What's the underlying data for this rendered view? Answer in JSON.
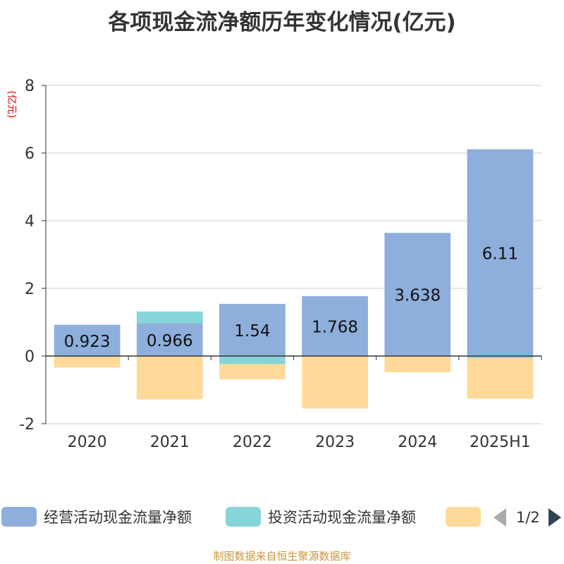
{
  "title": "各项现金流净额历年变化情况(亿元)",
  "source_note": "制图数据来自恒生聚源数据库",
  "legend": {
    "items": [
      {
        "label": "经营活动现金流量净额",
        "color": "#8eaedc"
      },
      {
        "label": "投资活动现金流量净额",
        "color": "#86d5d9"
      },
      {
        "label": "",
        "color": "#fed99a"
      }
    ],
    "page_text": "1/2"
  },
  "chart_data": {
    "type": "bar",
    "stacked": true,
    "ylabel": "(亿元)",
    "ylim": [
      -2,
      8
    ],
    "yticks": [
      -2,
      0,
      2,
      4,
      6,
      8
    ],
    "grid": true,
    "categories": [
      "2020",
      "2021",
      "2022",
      "2023",
      "2024",
      "2025H1"
    ],
    "series": [
      {
        "name": "经营活动现金流量净额",
        "color": "#8eaedc",
        "values": [
          0.923,
          0.966,
          1.54,
          1.768,
          3.638,
          6.11
        ],
        "labels": [
          "0.923",
          "0.966",
          "1.54",
          "1.768",
          "3.638",
          "6.11"
        ]
      },
      {
        "name": "投资活动现金流量净额",
        "color": "#86d5d9",
        "values": [
          -0.02,
          0.35,
          -0.24,
          0.0,
          0.0,
          -0.06
        ]
      },
      {
        "color": "#fed99a",
        "values": [
          -0.32,
          -1.28,
          -0.45,
          -1.55,
          -0.48,
          -1.2
        ]
      }
    ]
  }
}
